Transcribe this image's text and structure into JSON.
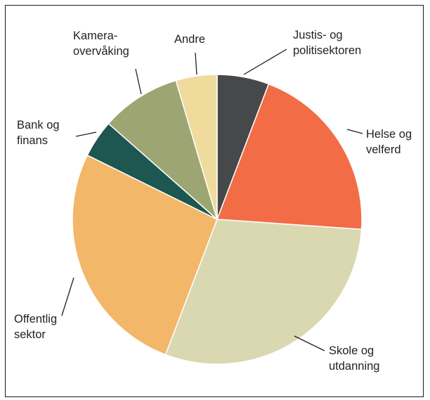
{
  "chart_data": {
    "type": "pie",
    "title": "",
    "start_angle_deg": 0,
    "direction": "clockwise",
    "legend": "none",
    "slices": [
      {
        "label_lines": [
          "Justis- og",
          "politisektoren"
        ],
        "value": 5.8,
        "color": "#454949"
      },
      {
        "label_lines": [
          "Helse og",
          "velferd"
        ],
        "value": 20.3,
        "color": "#f26c45"
      },
      {
        "label_lines": [
          "Skole og",
          "utdanning"
        ],
        "value": 29.7,
        "color": "#d9d8b1"
      },
      {
        "label_lines": [
          "Offentlig",
          "sektor"
        ],
        "value": 26.5,
        "color": "#f2b768"
      },
      {
        "label_lines": [
          "Bank og",
          "finans"
        ],
        "value": 4.2,
        "color": "#1e5651"
      },
      {
        "label_lines": [
          "Kamera-",
          "overvåking"
        ],
        "value": 8.9,
        "color": "#9da672"
      },
      {
        "label_lines": [
          "Andre"
        ],
        "value": 4.6,
        "color": "#efdb9b"
      }
    ]
  }
}
